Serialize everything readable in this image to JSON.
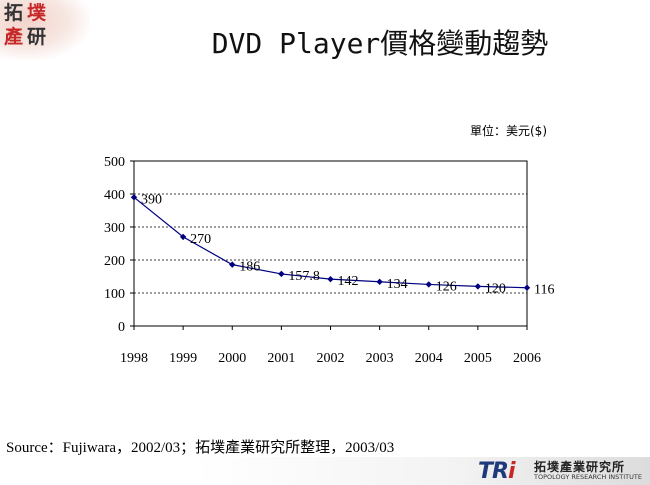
{
  "logo": {
    "characters": [
      "拓",
      "墣",
      "產",
      "研"
    ]
  },
  "title": "DVD Player價格變動趨勢",
  "unit_label": "單位：美元($)",
  "source": "Source：Fujiwara，2002/03；拓墣產業研究所整理，2003/03",
  "footer": {
    "brand_mark_tr": "TR",
    "brand_mark_i": "i",
    "brand_cn": "拓墣產業研究所",
    "brand_en": "TOPOLOGY RESEARCH INSTITUTE"
  },
  "colors": {
    "series": "#000080",
    "grid": "#000000",
    "logo_red": "#c62828",
    "logo_navy": "#1f3a7a"
  },
  "chart_data": {
    "type": "line",
    "title": "",
    "xlabel": "",
    "ylabel": "",
    "categories": [
      "1998",
      "1999",
      "2000",
      "2001",
      "2002",
      "2003",
      "2004",
      "2005",
      "2006"
    ],
    "series": [
      {
        "values": [
          390,
          270,
          186,
          157.8,
          142,
          134,
          126,
          120,
          116
        ],
        "labels": [
          "390",
          "270",
          "186",
          "157.8",
          "142",
          "134",
          "126",
          "120",
          "116"
        ]
      }
    ],
    "ylim": [
      0,
      500
    ],
    "yticks": [
      0,
      100,
      200,
      300,
      400,
      500
    ],
    "grid": true,
    "grid_style": "dashed",
    "legend": "none"
  }
}
